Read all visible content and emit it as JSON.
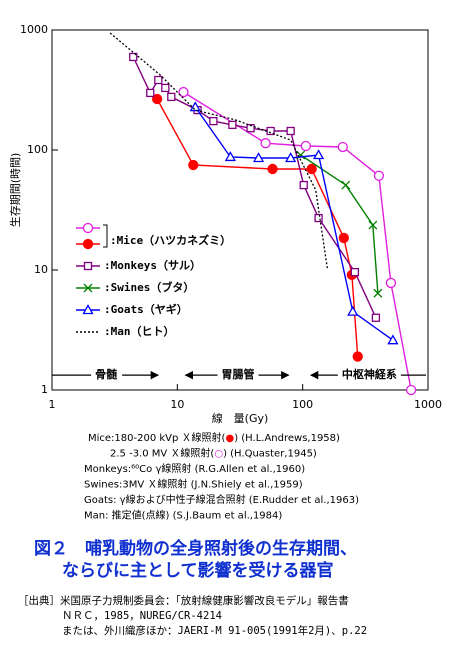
{
  "chart_data": {
    "type": "line",
    "log_x": true,
    "log_y": true,
    "xlim": [
      1,
      1000
    ],
    "ylim": [
      1,
      1000
    ],
    "xticks": [
      1,
      10,
      100,
      1000
    ],
    "yticks": [
      1,
      10,
      100,
      1000
    ],
    "xlabel": "線　量(Gy)",
    "ylabel": "生存期間(時間)",
    "series": [
      {
        "name": ":Mice（ハツカネズミ）",
        "color": "#e020e0",
        "marker": "circle-open",
        "dash": false,
        "x": [
          11.2,
          50.6,
          106,
          209,
          406,
          506,
          733
        ],
        "values": [
          304,
          114,
          108,
          106,
          61,
          7.8,
          1
        ]
      },
      {
        "color": "#ff0000",
        "marker": "circle-filled",
        "dash": false,
        "x": [
          6.9,
          13.4,
          57.5,
          118,
          213,
          247,
          275
        ],
        "values": [
          266,
          75,
          69.5,
          69.5,
          18.5,
          9.1,
          1.9
        ]
      },
      {
        "name": ":Monkeys（サル）",
        "color": "#800080",
        "marker": "square",
        "dash": false,
        "x": [
          4.45,
          6.08,
          7.05,
          8.02,
          8.95,
          14.5,
          19.4,
          27.5,
          38.4,
          55.5,
          80.2,
          102,
          134,
          261,
          384
        ],
        "values": [
          596,
          299,
          383,
          329,
          277,
          215,
          174,
          162,
          152,
          144,
          144,
          51,
          27.1,
          9.6,
          4.0
        ]
      },
      {
        "name": ":Swines（ブタ）",
        "color": "#008000",
        "marker": "x",
        "dash": false,
        "x": [
          96.4,
          221,
          363,
          398
        ],
        "values": [
          90.8,
          51,
          23.7,
          6.4
        ]
      },
      {
        "name": ":Goats（ヤギ）",
        "color": "#0000ff",
        "marker": "triangle",
        "dash": false,
        "x": [
          13.9,
          26.5,
          44.5,
          80.2,
          134,
          251,
          525
        ],
        "values": [
          228,
          87.5,
          85.8,
          85.8,
          90.8,
          4.5,
          2.6
        ]
      },
      {
        "name": ":Man（ヒト）",
        "color": "#000000",
        "marker": "none",
        "dash": true,
        "x": [
          2.91,
          7.3,
          13.9,
          29.1,
          80.2,
          127,
          158
        ],
        "values": [
          944,
          422,
          215,
          178,
          121,
          46.4,
          10
        ]
      }
    ],
    "legend": [
      {
        "label": ":Mice（ハツカネズミ）",
        "series": [
          0,
          1
        ],
        "label_color": "#ff0000"
      },
      {
        "label": ":Monkeys（サル）",
        "series": [
          2
        ],
        "label_color": "#800080"
      },
      {
        "label": ":Swines（ブタ）",
        "series": [
          3
        ],
        "label_color": "#008000"
      },
      {
        "label": ":Goats（ヤギ）",
        "series": [
          4
        ],
        "label_color": "#0000ff"
      },
      {
        "label": ":Man（ヒト）",
        "series": [
          5
        ],
        "label_color": "#000000"
      }
    ],
    "phases": [
      {
        "label": "骨髄",
        "x_range": [
          1,
          7.3
        ],
        "y": 1.33,
        "arrows": "end"
      },
      {
        "label": "胃腸管",
        "x_range": [
          11.6,
          80.2
        ],
        "y": 1.33,
        "arrows": "both"
      },
      {
        "label": "中枢神経系",
        "x_range": [
          116,
          1000
        ],
        "y": 1.33,
        "arrows": "start"
      }
    ],
    "phase_color": "#006000",
    "notes": [
      [
        {
          "text": "Mice:180-200 kVp Ｘ線照射("
        },
        {
          "text": "●",
          "color": "#ff0000"
        },
        {
          "text": ")"
        },
        {
          "text": "  (H.L.Andrews,1958)"
        }
      ],
      [
        {
          "text": "2.5 -3.0  MV  Ｘ線照射("
        },
        {
          "text": "○",
          "color": "#e020e0"
        },
        {
          "text": ")"
        },
        {
          "text": "  (H.Quaster,1945)"
        }
      ],
      [
        {
          "text": "Monkeys:⁶⁰Co γ線照射"
        },
        {
          "text": "  (R.G.Allen et al.,1960)"
        }
      ],
      [
        {
          "text": "Swines:3MV Ｘ線照射"
        },
        {
          "text": "  (J.N.Shiely et al.,1959)"
        }
      ],
      [
        {
          "text": "Goats: γ線および中性子線混合照射"
        },
        {
          "text": "  (E.Rudder et al.,1963)"
        }
      ],
      [
        {
          "text": "Man: 推定値(点線)"
        },
        {
          "text": "  (S.J.Baum et al.,1984)"
        }
      ]
    ]
  },
  "caption": [
    "図２　哺乳動物の全身照射後の生存期間、",
    "ならびに主として影響を受ける器官"
  ],
  "source": [
    "［出典］米国原子力規制委員会：「放射線健康影響改良モデル」報告書",
    "ＮＲＣ，1985，NUREG/CR-4214",
    "または、外川織彦ほか：JAERI-M 91-005(1991年2月)、p.22"
  ]
}
